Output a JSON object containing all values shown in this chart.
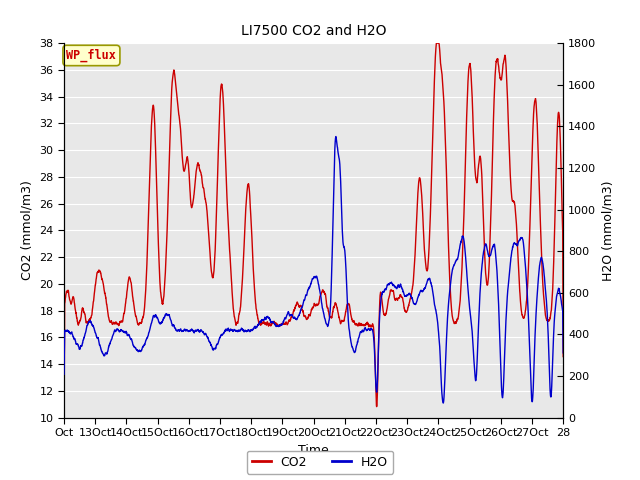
{
  "title": "LI7500 CO2 and H2O",
  "xlabel": "Time",
  "ylabel_left": "CO2 (mmol/m3)",
  "ylabel_right": "H2O (mmol/m3)",
  "ylim_left": [
    10,
    38
  ],
  "ylim_right": [
    0,
    1800
  ],
  "yticks_left": [
    10,
    12,
    14,
    16,
    18,
    20,
    22,
    24,
    26,
    28,
    30,
    32,
    34,
    36,
    38
  ],
  "yticks_right": [
    0,
    200,
    400,
    600,
    800,
    1000,
    1200,
    1400,
    1600,
    1800
  ],
  "x_tick_labels": [
    "Oct",
    "13Oct",
    "14Oct",
    "15Oct",
    "16Oct",
    "17Oct",
    "18Oct",
    "19Oct",
    "20Oct",
    "21Oct",
    "22Oct",
    "23Oct",
    "24Oct",
    "25Oct",
    "26Oct",
    "27Oct",
    "28"
  ],
  "co2_color": "#cc0000",
  "h2o_color": "#0000cc",
  "bg_color": "#ffffff",
  "plot_bg_color": "#e8e8e8",
  "grid_color": "white",
  "wp_flux_label": "WP_flux",
  "wp_flux_bg": "#ffffcc",
  "wp_flux_border": "#999900",
  "wp_flux_text_color": "#cc0000",
  "legend_co2": "CO2",
  "legend_h2o": "H2O"
}
